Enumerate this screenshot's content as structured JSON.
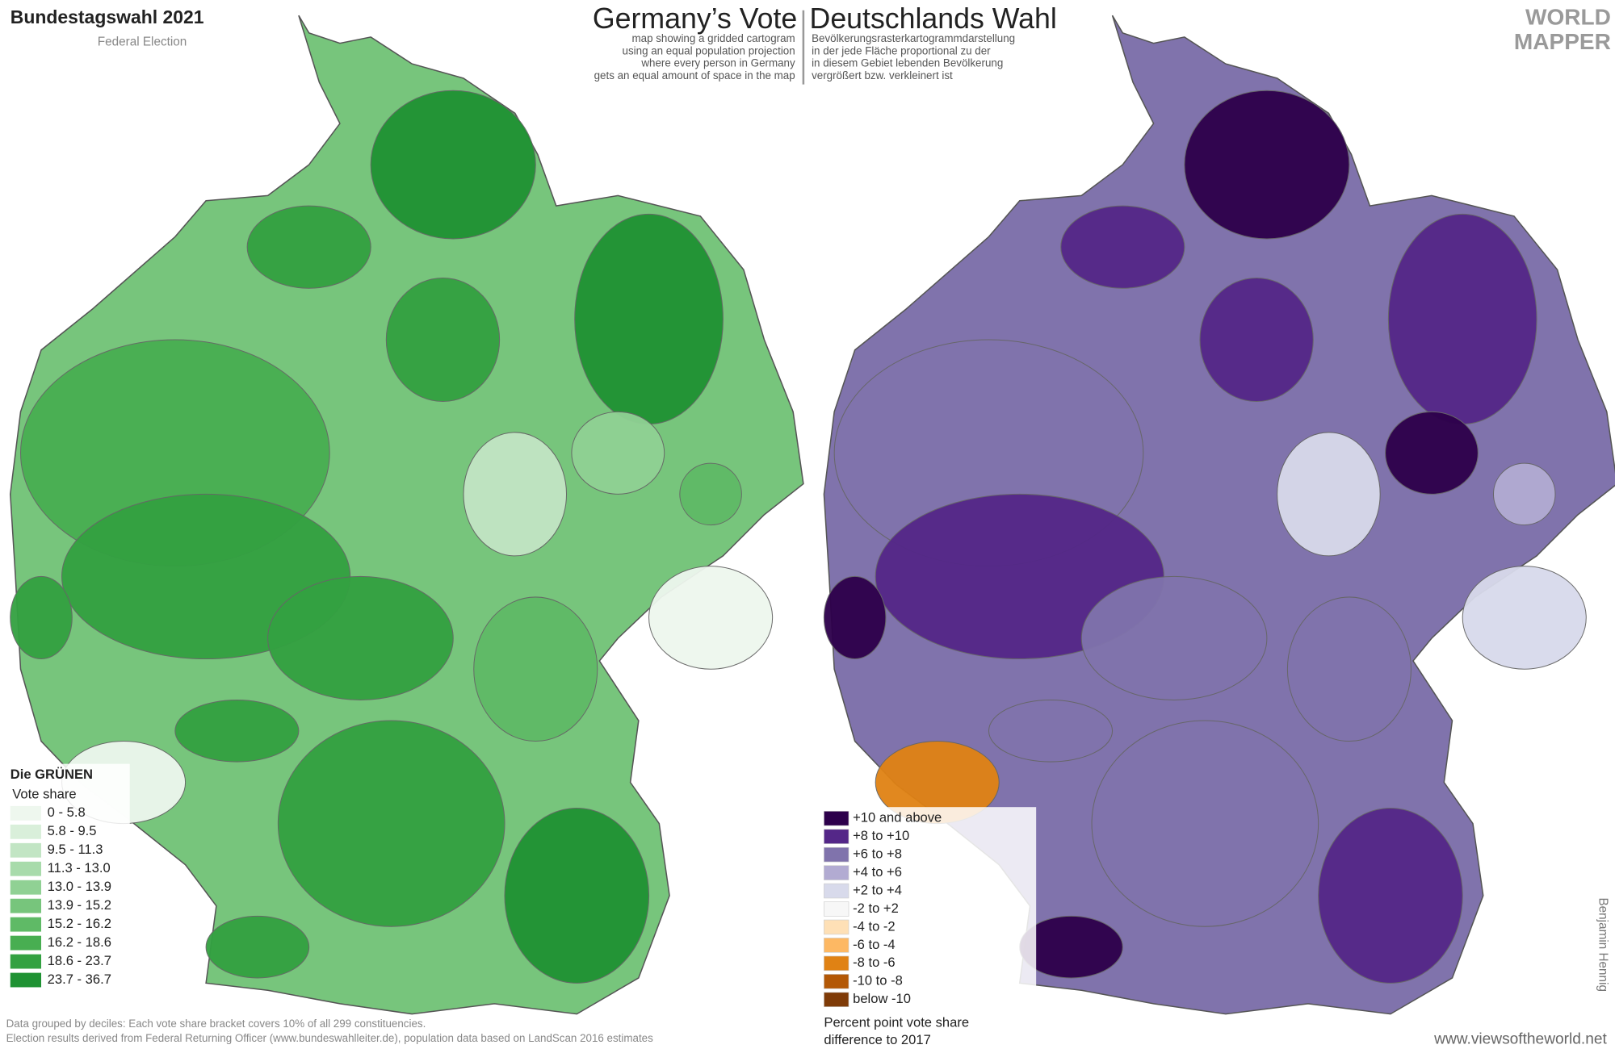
{
  "header": {
    "title": "Bundestagswahl 2021",
    "subtitle": "Federal Election",
    "title_en": "Germany’s Vote",
    "title_de": "Deutschlands Wahl",
    "description_en": [
      "map showing a gridded cartogram",
      "using an equal population projection",
      "where every person in Germany",
      "gets an equal amount of space in the map"
    ],
    "description_de": [
      "Bevölkerungsrasterkartogrammdarstellung",
      "in der jede Fläche proportional zu der",
      "in diesem Gebiet lebenden Bevölkerung",
      "vergrößert bzw. verkleinert ist"
    ],
    "logo": [
      "WORLD",
      "MAPPER"
    ]
  },
  "left_map": {
    "party": "Die GRÜNEN",
    "legend_title": "Vote share",
    "legend": [
      {
        "label": "0 - 5.8",
        "color": "#eef7ee"
      },
      {
        "label": "5.8 - 9.5",
        "color": "#d9efda"
      },
      {
        "label": "9.5 - 11.3",
        "color": "#c2e5c4"
      },
      {
        "label": "11.3 - 13.0",
        "color": "#a8dbab"
      },
      {
        "label": "13.0 - 13.9",
        "color": "#90d194"
      },
      {
        "label": "13.9 - 15.2",
        "color": "#77c57c"
      },
      {
        "label": "15.2 - 16.2",
        "color": "#5fba66"
      },
      {
        "label": "16.2 - 18.6",
        "color": "#48ae51"
      },
      {
        "label": "18.6 - 23.7",
        "color": "#33a141"
      },
      {
        "label": "23.7 - 36.7",
        "color": "#1f9233"
      }
    ]
  },
  "right_map": {
    "legend": [
      {
        "label": "+10 and above",
        "color": "#2d004b"
      },
      {
        "label": "+8 to +10",
        "color": "#542788"
      },
      {
        "label": "+6 to +8",
        "color": "#8073ac"
      },
      {
        "label": "+4 to +6",
        "color": "#b2abd2"
      },
      {
        "label": "+2 to +4",
        "color": "#d8daeb"
      },
      {
        "label": "-2 to +2",
        "color": "#f7f7f7"
      },
      {
        "label": "-4 to -2",
        "color": "#fee0b6"
      },
      {
        "label": "-6 to -4",
        "color": "#fdb863"
      },
      {
        "label": "-8 to -6",
        "color": "#e08214"
      },
      {
        "label": "-10 to -8",
        "color": "#b35806"
      },
      {
        "label": "below -10",
        "color": "#7f3b08"
      }
    ],
    "legend_caption": [
      "Percent point vote share",
      "difference to 2017"
    ]
  },
  "footer": {
    "notes": [
      "Data grouped by deciles: Each vote share bracket covers 10% of all 299 constituencies.",
      "Election results derived from Federal Returning Officer (www.bundeswahlleiter.de), population data based on LandScan 2016 estimates"
    ],
    "website": "www.viewsoftheworld.net",
    "author": "Benjamin Hennig"
  }
}
